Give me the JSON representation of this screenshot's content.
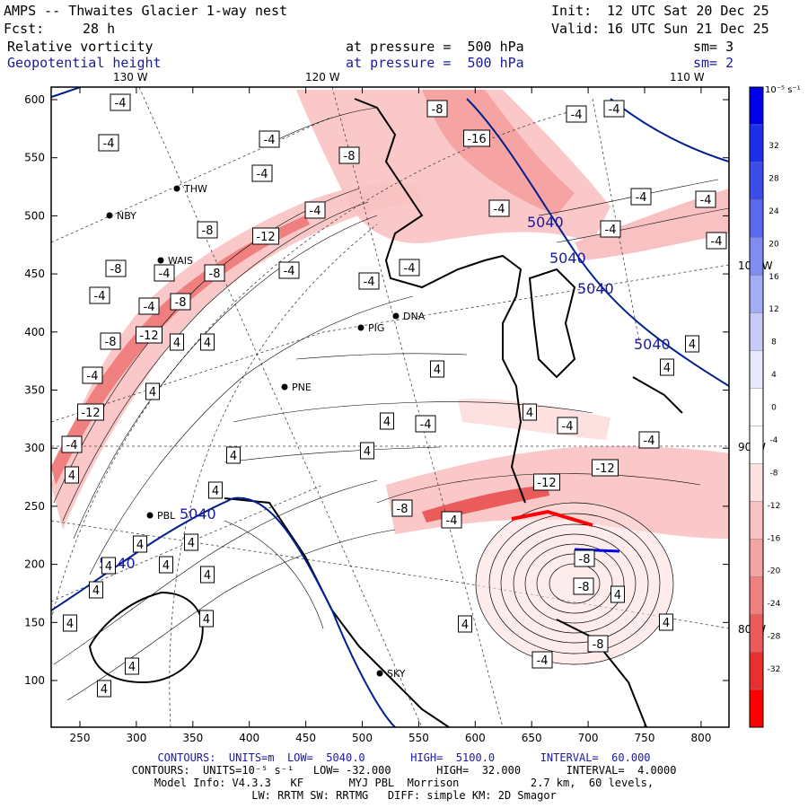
{
  "header": {
    "title": "AMPS -- Thwaites Glacier 1-way nest",
    "fcst_label": "Fcst:",
    "fcst_value": "28 h",
    "init_label": "Init:",
    "init_value": "12 UTC Sat 20 Dec 25",
    "valid_label": "Valid:",
    "valid_value": "16 UTC Sun 21 Dec 25",
    "field1": {
      "name": "Relative vorticity",
      "level": "at pressure =  500 hPa",
      "sm": "sm= 3"
    },
    "field2": {
      "name": "Geopotential height",
      "level": "at pressure =  500 hPa",
      "sm": "sm= 2"
    }
  },
  "map": {
    "x_ticks": [
      "250",
      "300",
      "350",
      "400",
      "450",
      "500",
      "550",
      "600",
      "650",
      "700",
      "750",
      "800"
    ],
    "y_ticks": [
      "100",
      "150",
      "200",
      "250",
      "300",
      "350",
      "400",
      "450",
      "500",
      "550",
      "600"
    ],
    "lon_labels": [
      "130 W",
      "120 W",
      "110 W"
    ],
    "lat_labels": [
      "100 W",
      "90 W",
      "80 W"
    ],
    "stations": [
      {
        "name": "NBY"
      },
      {
        "name": "THW"
      },
      {
        "name": "WAIS"
      },
      {
        "name": "PIG"
      },
      {
        "name": "PNE"
      },
      {
        "name": "PBL"
      },
      {
        "name": "SKY"
      },
      {
        "name": "DNA"
      }
    ],
    "height_labels": [
      "5040",
      "5040",
      "5040",
      "5040",
      "5040",
      "5040"
    ],
    "vort_labels": [
      "-4",
      "-8",
      "-12",
      "-16",
      "4"
    ],
    "colors": {
      "height_contour": "#00208f",
      "coast": "#000000",
      "grid": "#444444"
    }
  },
  "colorbar": {
    "unit": "10⁻⁵ s⁻¹",
    "labels": [
      "32",
      "28",
      "24",
      "20",
      "16",
      "12",
      "8",
      "4",
      "0",
      "-4",
      "-8",
      "-12",
      "-16",
      "-20",
      "-24",
      "-28",
      "-32"
    ],
    "colors": [
      "#0000e8",
      "#1f2ee8",
      "#3d4ce8",
      "#5b6aec",
      "#7f8cf0",
      "#a3acf4",
      "#c6cbf8",
      "#e6e8fc",
      "#ffffff",
      "#ffffff",
      "#fde0e0",
      "#f9c2c2",
      "#f5a3a3",
      "#f08080",
      "#ea5c5c",
      "#e83030",
      "#ff0000"
    ]
  },
  "footer": {
    "line1": "CONTOURS:  UNITS=m  LOW=  5040.0       HIGH=  5100.0       INTERVAL=  60.000",
    "line2": "CONTOURS:  UNITS=10⁻⁵ s⁻¹   LOW= -32.000       HIGH=  32.000       INTERVAL=  4.0000",
    "line3": "Model Info: V4.3.3   KF       MYJ PBL  Morrison           2.7 km,  60 levels,",
    "line4": "LW: RRTM SW: RRTMG   DIFF: simple KM: 2D Smagor"
  }
}
